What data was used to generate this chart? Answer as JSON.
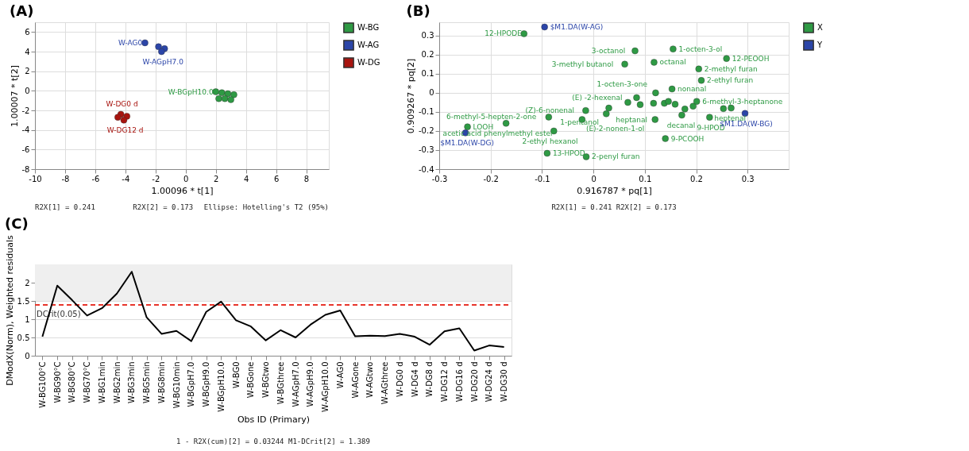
{
  "chart_data": [
    {
      "type": "scatter",
      "title": "(A)",
      "xlabel": "1.00096 * t[1]",
      "ylabel": "1.00007 * t[2]",
      "xlim": [
        -10,
        9.5
      ],
      "xticks": [
        -10,
        -8,
        -6,
        -4,
        -2,
        0,
        2,
        4,
        6,
        8
      ],
      "ylim": [
        -8,
        7
      ],
      "yticks": [
        -8,
        -6,
        -4,
        -2,
        0,
        2,
        4,
        6
      ],
      "grid": true,
      "legend": "top right",
      "marker": "circle",
      "series": [
        {
          "name": "W-BG",
          "color": "#2e9a44",
          "x": [
            2.0,
            2.4,
            2.8,
            3.2,
            2.2,
            2.6,
            3.0
          ],
          "values": [
            -0.1,
            -0.2,
            -0.3,
            -0.4,
            -0.8,
            -0.8,
            -0.9
          ]
        },
        {
          "name": "W-AG",
          "color": "#2b45a8",
          "x": [
            -2.7,
            -1.8,
            -1.4,
            -1.6
          ],
          "values": [
            4.9,
            4.5,
            4.3,
            4.0
          ]
        },
        {
          "name": "W-DG",
          "color": "#a8140f",
          "x": [
            -4.3,
            -3.9,
            -4.1,
            -4.5
          ],
          "values": [
            -2.4,
            -2.6,
            -3.0,
            -2.7
          ]
        }
      ],
      "annotations": [
        "R2X[1] = 0.241",
        "R2X[2] = 0.173",
        "Ellipse: Hotelling's T2 (95%)",
        {
          "text": "W-AG0",
          "x": -2.7,
          "y": 4.9
        },
        {
          "text": "W-AGpH7.0",
          "x": -1.6,
          "y": 4.0
        },
        {
          "text": "W-BGpH10.0",
          "x": 2.0,
          "y": -0.1
        },
        {
          "text": "W-DG0 d",
          "x": -4.3,
          "y": -2.4
        },
        {
          "text": "W-DG12 d",
          "x": -4.1,
          "y": -3.0
        }
      ]
    },
    {
      "type": "scatter",
      "title": "(B)",
      "xlabel": "0.916787 * pq[1]",
      "ylabel": "0.909267 * pq[2]",
      "xlim": [
        -0.3,
        0.38
      ],
      "xticks": [
        -0.3,
        -0.2,
        -0.1,
        0,
        0.1,
        0.2,
        0.3
      ],
      "ylim": [
        -0.4,
        0.37
      ],
      "yticks": [
        -0.4,
        -0.3,
        -0.2,
        -0.1,
        0,
        0.1,
        0.2,
        0.3
      ],
      "grid": true,
      "legend": "top right",
      "marker": "circle",
      "series": [
        {
          "name": "X",
          "color": "#2e9a44",
          "x": [
            -0.135,
            0.081,
            0.155,
            0.259,
            0.061,
            0.118,
            0.205,
            0.21,
            0.153,
            0.121,
            0.084,
            0.067,
            0.091,
            0.117,
            0.138,
            0.146,
            0.159,
            0.194,
            0.201,
            0.178,
            0.172,
            0.253,
            0.268,
            0.226,
            0.12,
            0.14,
            0.03,
            0.025,
            -0.015,
            -0.022,
            -0.087,
            -0.077,
            -0.17,
            -0.245,
            -0.09,
            -0.014
          ],
          "values": [
            0.31,
            0.22,
            0.23,
            0.18,
            0.15,
            0.16,
            0.125,
            0.065,
            0.02,
            0.0,
            -0.025,
            -0.05,
            -0.062,
            -0.055,
            -0.055,
            -0.045,
            -0.06,
            -0.07,
            -0.045,
            -0.085,
            -0.117,
            -0.083,
            -0.08,
            -0.128,
            -0.14,
            -0.24,
            -0.08,
            -0.11,
            -0.093,
            -0.14,
            -0.127,
            -0.2,
            -0.16,
            -0.178,
            -0.317,
            -0.335
          ]
        },
        {
          "name": "Y",
          "color": "#2b45a8",
          "x": [
            -0.095,
            -0.249,
            0.295
          ],
          "values": [
            0.345,
            -0.21,
            -0.108
          ]
        }
      ],
      "annotations": [
        "R2X[1] = 0.241 R2X[2] = 0.173",
        {
          "text": "12-HPODE",
          "x": -0.135,
          "y": 0.31
        },
        {
          "text": "$M1.DA(W-AG)",
          "x": -0.095,
          "y": 0.345
        },
        {
          "text": "3-octanol",
          "x": 0.081,
          "y": 0.22
        },
        {
          "text": "1-octen-3-ol",
          "x": 0.155,
          "y": 0.23
        },
        {
          "text": "12-PEOOH",
          "x": 0.259,
          "y": 0.18
        },
        {
          "text": "3-methyl butanol",
          "x": 0.061,
          "y": 0.15
        },
        {
          "text": "octanal",
          "x": 0.118,
          "y": 0.16
        },
        {
          "text": "2-methyl furan",
          "x": 0.205,
          "y": 0.125
        },
        {
          "text": "2-ethyl furan",
          "x": 0.21,
          "y": 0.065
        },
        {
          "text": "nonanal",
          "x": 0.153,
          "y": 0.02
        },
        {
          "text": "1-octen-3-one",
          "x": 0.121,
          "y": 0.0
        },
        {
          "text": "(E) -2-hexenal",
          "x": 0.084,
          "y": -0.025
        },
        {
          "text": "6-methyl-3-heptanone",
          "x": 0.201,
          "y": -0.045
        },
        {
          "text": "heptenal",
          "x": 0.268,
          "y": -0.08
        },
        {
          "text": "9-HPOD",
          "x": 0.226,
          "y": -0.128
        },
        {
          "text": "decanal",
          "x": 0.172,
          "y": -0.117
        },
        {
          "text": "heptanal",
          "x": 0.12,
          "y": -0.14
        },
        {
          "text": "9-PCOOH",
          "x": 0.14,
          "y": -0.24
        },
        {
          "text": "1-pentanol",
          "x": 0.025,
          "y": -0.11
        },
        {
          "text": "(Z)-6-nonenal",
          "x": -0.015,
          "y": -0.093
        },
        {
          "text": "(E)-2-nonen-1-ol",
          "x": -0.022,
          "y": -0.14
        },
        {
          "text": "6-methyl-5-hepten-2-one",
          "x": -0.087,
          "y": -0.127
        },
        {
          "text": "2-ethyl hexanol",
          "x": -0.077,
          "y": -0.2
        },
        {
          "text": "acetic acid phenylmethyl ester",
          "x": -0.17,
          "y": -0.16
        },
        {
          "text": "LOOH",
          "x": -0.245,
          "y": -0.178
        },
        {
          "text": "$M1.DA(W-DG)",
          "x": -0.249,
          "y": -0.21
        },
        {
          "text": "$M1.DA(W-BG)",
          "x": 0.295,
          "y": -0.108
        },
        {
          "text": "13-HPOD",
          "x": -0.09,
          "y": -0.317
        },
        {
          "text": "2-penyl furan",
          "x": -0.014,
          "y": -0.335
        }
      ]
    },
    {
      "type": "line",
      "title": "(C)",
      "xlabel": "Obs ID (Primary)",
      "ylabel": "DModX(Norm), Weighted residuals",
      "ylim": [
        0,
        2.5
      ],
      "yticks": [
        0,
        0.5,
        1,
        1.5,
        2
      ],
      "grid": "y",
      "categories": [
        "W-BG100°C",
        "W-BG90°C",
        "W-BG80°C",
        "W-BG70°C",
        "W-BG1min",
        "W-BG2min",
        "W-BG3min",
        "W-BG5min",
        "W-BG8min",
        "W-BG10min",
        "W-BGpH7.0",
        "W-BGpH9.0",
        "W-BGpH10.0",
        "W-BG0",
        "W-BGone",
        "W-BGtwo",
        "W-BGthree",
        "W-AGpH7.0",
        "W-AGpH9.0",
        "W-AGpH10.0",
        "W-AG0",
        "W-AGone",
        "W-AGtwo",
        "W-AGthree",
        "W-DG0 d",
        "W-DG4 d",
        "W-DG8 d",
        "W-DG12 d",
        "W-DG16 d",
        "W-DG20 d",
        "W-DG24 d",
        "W-DG30 d"
      ],
      "series": [
        {
          "color": "#000000",
          "values": [
            0.52,
            1.92,
            1.52,
            1.1,
            1.3,
            1.7,
            2.3,
            1.05,
            0.6,
            0.68,
            0.4,
            1.2,
            1.48,
            0.97,
            0.8,
            0.42,
            0.7,
            0.5,
            0.85,
            1.12,
            1.24,
            0.53,
            0.55,
            0.54,
            0.6,
            0.52,
            0.3,
            0.67,
            0.75,
            0.14,
            0.28,
            0.24
          ]
        }
      ],
      "ref_lines": [
        {
          "axis": "y",
          "value": 1.389,
          "label": "DCrit(0.05)",
          "color": "#e8352b",
          "line_style": "dashed"
        }
      ],
      "bands": [
        {
          "axis": "y",
          "from": 1.5,
          "to": 2.5,
          "color": "#efefef"
        }
      ],
      "annotations": [
        "1 - R2X(cum)[2] = 0.03244 M1-DCrit[2] = 1.389"
      ]
    }
  ]
}
